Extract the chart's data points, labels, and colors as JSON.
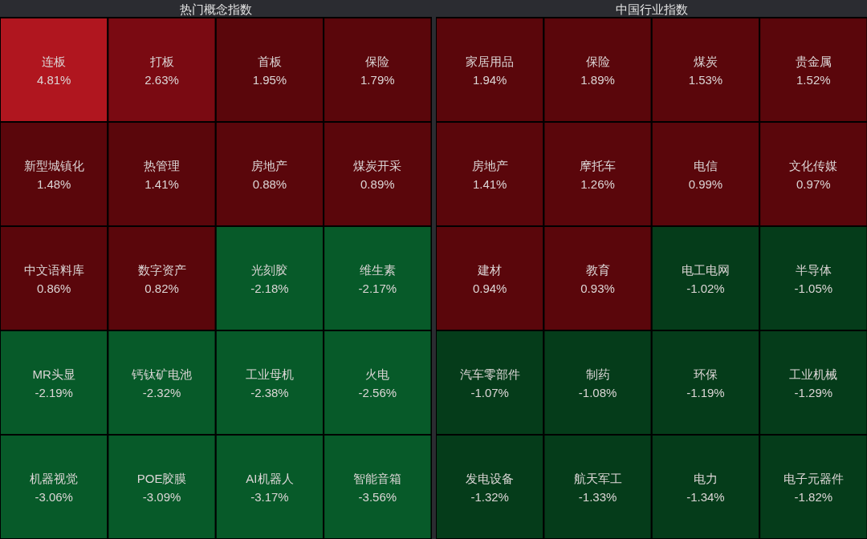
{
  "chart_data": [
    {
      "type": "other",
      "title": "热门概念指数",
      "categories": [
        "连板",
        "打板",
        "首板",
        "保险",
        "新型城镇化",
        "热管理",
        "房地产",
        "煤炭开采",
        "中文语料库",
        "数字资产",
        "光刻胶",
        "维生素",
        "MR头显",
        "钙钛矿电池",
        "工业母机",
        "火电",
        "机器视觉",
        "POE胶膜",
        "AI机器人",
        "智能音箱"
      ],
      "values": [
        4.81,
        2.63,
        1.95,
        1.79,
        1.48,
        1.41,
        0.88,
        0.89,
        0.86,
        0.82,
        -2.18,
        -2.17,
        -2.19,
        -2.32,
        -2.38,
        -2.56,
        -3.06,
        -3.09,
        -3.17,
        -3.56
      ],
      "value_labels": [
        "4.81%",
        "2.63%",
        "1.95%",
        "1.79%",
        "1.48%",
        "1.41%",
        "0.88%",
        "0.89%",
        "0.86%",
        "0.82%",
        "-2.18%",
        "-2.17%",
        "-2.19%",
        "-2.32%",
        "-2.38%",
        "-2.56%",
        "-3.06%",
        "-3.09%",
        "-3.17%",
        "-3.56%"
      ],
      "colors": [
        "#b0161f",
        "#7a0a12",
        "#5a060b",
        "#5a060b",
        "#5a060b",
        "#5a060b",
        "#5a060b",
        "#5a060b",
        "#5a060b",
        "#5a060b",
        "#075a29",
        "#075a29",
        "#075a29",
        "#075a29",
        "#075a29",
        "#075a29",
        "#075a29",
        "#075a29",
        "#075a29",
        "#075a29"
      ]
    },
    {
      "type": "other",
      "title": "中国行业指数",
      "categories": [
        "家居用品",
        "保险",
        "煤炭",
        "贵金属",
        "房地产",
        "摩托车",
        "电信",
        "文化传媒",
        "建材",
        "教育",
        "电工电网",
        "半导体",
        "汽车零部件",
        "制药",
        "环保",
        "工业机械",
        "发电设备",
        "航天军工",
        "电力",
        "电子元器件"
      ],
      "values": [
        1.94,
        1.89,
        1.53,
        1.52,
        1.41,
        1.26,
        0.99,
        0.97,
        0.94,
        0.93,
        -1.02,
        -1.05,
        -1.07,
        -1.08,
        -1.19,
        -1.29,
        -1.32,
        -1.33,
        -1.34,
        -1.82
      ],
      "value_labels": [
        "1.94%",
        "1.89%",
        "1.53%",
        "1.52%",
        "1.41%",
        "1.26%",
        "0.99%",
        "0.97%",
        "0.94%",
        "0.93%",
        "-1.02%",
        "-1.05%",
        "-1.07%",
        "-1.08%",
        "-1.19%",
        "-1.29%",
        "-1.32%",
        "-1.33%",
        "-1.34%",
        "-1.82%"
      ],
      "colors": [
        "#5a060b",
        "#5a060b",
        "#5a060b",
        "#5a060b",
        "#5a060b",
        "#5a060b",
        "#5a060b",
        "#5a060b",
        "#5a060b",
        "#5a060b",
        "#053c1a",
        "#053c1a",
        "#053c1a",
        "#053c1a",
        "#053c1a",
        "#053c1a",
        "#053c1a",
        "#053c1a",
        "#053c1a",
        "#053c1a"
      ]
    }
  ]
}
